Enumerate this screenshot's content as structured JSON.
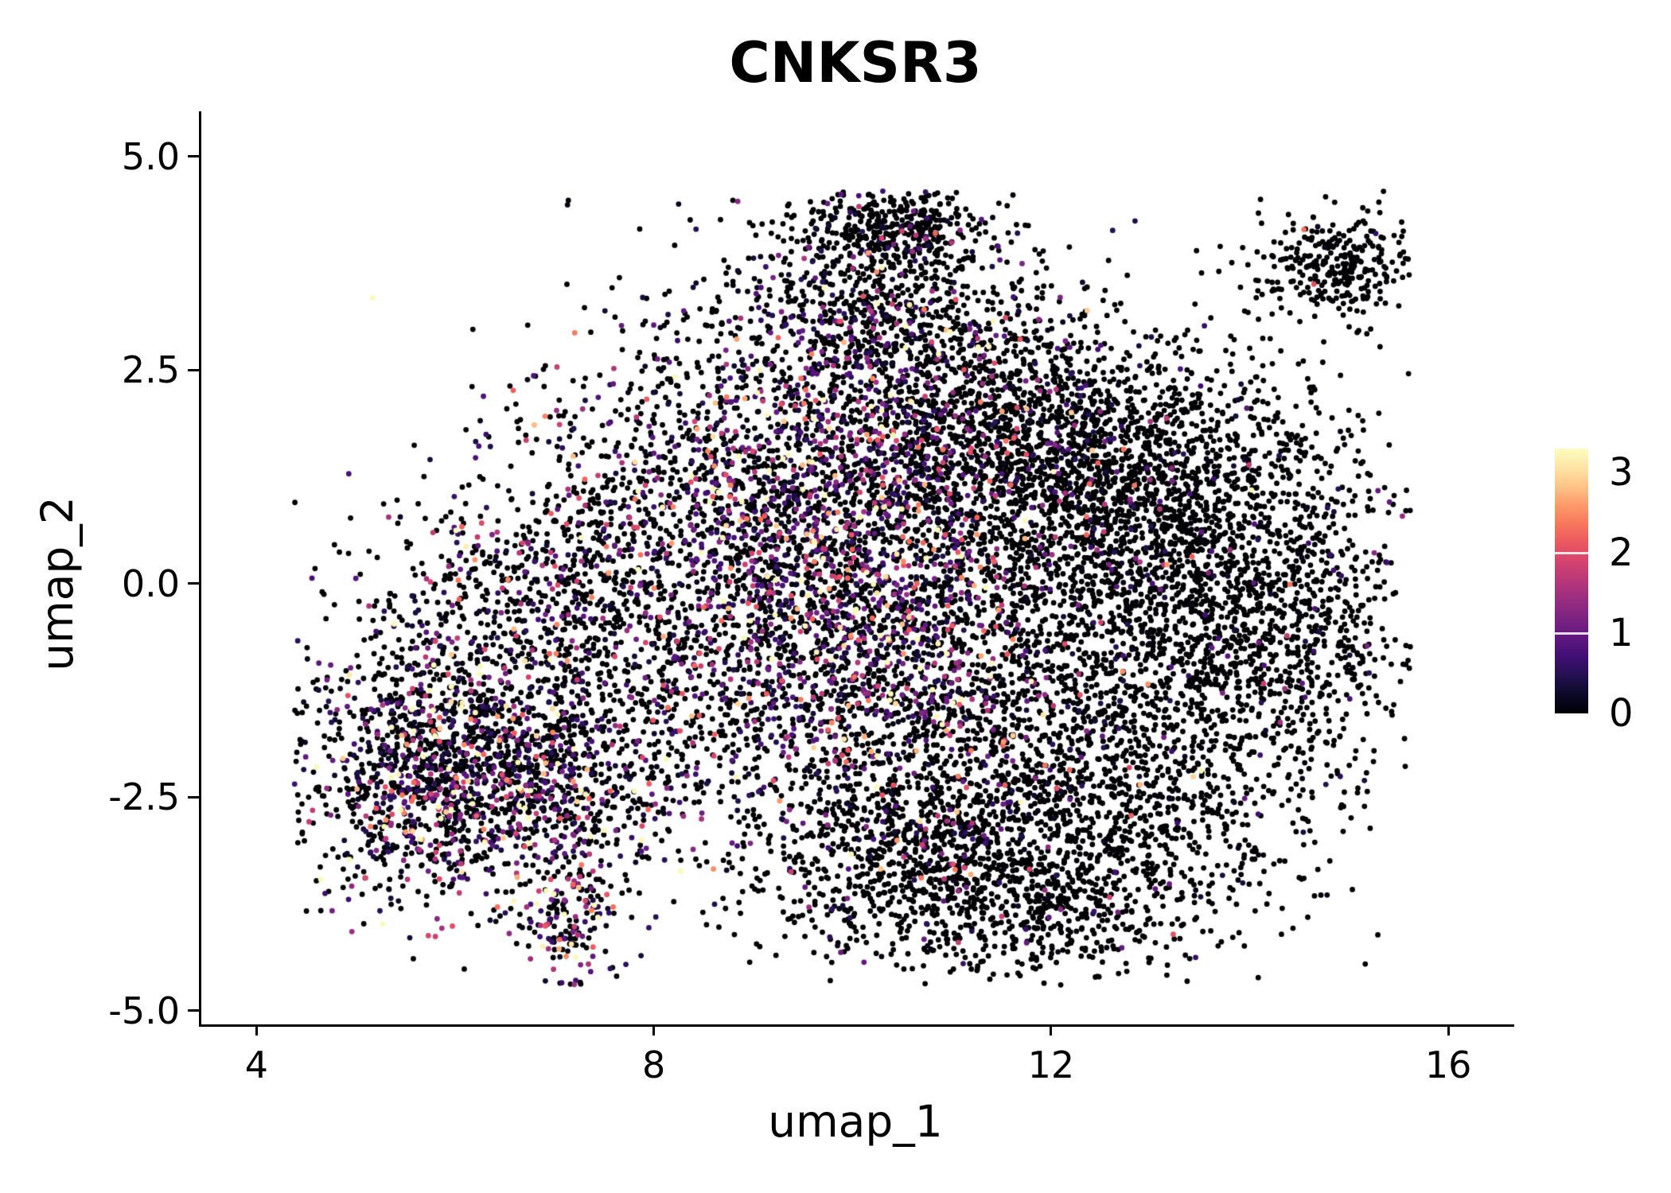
{
  "chart_data": {
    "type": "scatter",
    "title": "CNKSR3",
    "xlabel": "umap_1",
    "ylabel": "umap_2",
    "background_color": "#ffffff",
    "axis_color": "#000000",
    "grid": false,
    "x_domain": [
      3.42,
      16.64
    ],
    "y_domain": [
      -5.16,
      5.53
    ],
    "x_ticks": [
      {
        "value": 4,
        "label": "4"
      },
      {
        "value": 8,
        "label": "8"
      },
      {
        "value": 12,
        "label": "12"
      },
      {
        "value": 16,
        "label": "16"
      }
    ],
    "y_ticks": [
      {
        "value": 5.0,
        "label": "5.0"
      },
      {
        "value": 2.5,
        "label": "2.5"
      },
      {
        "value": 0.0,
        "label": "0.0"
      },
      {
        "value": -2.5,
        "label": "-2.5"
      },
      {
        "value": -5.0,
        "label": "-5.0"
      }
    ],
    "legend": {
      "position": "right",
      "range": [
        0,
        3.3
      ],
      "ticks": [
        {
          "value": 0,
          "label": "0"
        },
        {
          "value": 1,
          "label": "1"
        },
        {
          "value": 2,
          "label": "2"
        },
        {
          "value": 3,
          "label": "3"
        }
      ],
      "tick_marks": [
        1,
        2
      ]
    },
    "colormap": {
      "name": "magma",
      "stops": [
        "#000004",
        "#0c0927",
        "#231151",
        "#410f75",
        "#5f187f",
        "#7b2382",
        "#982d80",
        "#b73779",
        "#d3436e",
        "#eb5760",
        "#f8765c",
        "#fd9a6a",
        "#fec488",
        "#fde4a5",
        "#fcfdbf"
      ]
    },
    "points": {
      "seed": 42,
      "radius": 3.4,
      "clip": {
        "x": [
          4.35,
          15.6
        ],
        "y": [
          -4.7,
          4.6
        ]
      },
      "clusters": [
        {
          "name": "left-lobe-core",
          "cx": 6.15,
          "cy": -2.25,
          "sx": 0.85,
          "sy": 0.72,
          "n": 1400,
          "p_expr": 0.45,
          "expr_mean": 1.0
        },
        {
          "name": "left-lobe-halo",
          "cx": 6.4,
          "cy": -1.7,
          "sx": 1.35,
          "sy": 1.05,
          "n": 900,
          "p_expr": 0.32,
          "expr_mean": 0.9
        },
        {
          "name": "left-top-arm",
          "cx": 7.1,
          "cy": 0.15,
          "sx": 0.95,
          "sy": 0.7,
          "n": 520,
          "p_expr": 0.3,
          "expr_mean": 0.9
        },
        {
          "name": "left-bridge",
          "cx": 8.35,
          "cy": -0.9,
          "sx": 0.95,
          "sy": 0.95,
          "n": 480,
          "p_expr": 0.25,
          "expr_mean": 0.85
        },
        {
          "name": "south-peninsula",
          "cx": 7.15,
          "cy": -3.85,
          "sx": 0.24,
          "sy": 0.5,
          "n": 190,
          "p_expr": 0.5,
          "expr_mean": 1.1
        },
        {
          "name": "central-band",
          "cx": 10.0,
          "cy": 0.35,
          "sx": 0.95,
          "sy": 1.15,
          "n": 1500,
          "p_expr": 0.55,
          "expr_mean": 1.2
        },
        {
          "name": "central-upper-left",
          "cx": 9.2,
          "cy": 1.0,
          "sx": 0.85,
          "sy": 0.95,
          "n": 620,
          "p_expr": 0.42,
          "expr_mean": 1.0
        },
        {
          "name": "central-lower",
          "cx": 10.25,
          "cy": -1.3,
          "sx": 0.95,
          "sy": 0.8,
          "n": 720,
          "p_expr": 0.4,
          "expr_mean": 1.05
        },
        {
          "name": "top-mass",
          "cx": 10.3,
          "cy": 3.2,
          "sx": 0.78,
          "sy": 0.68,
          "n": 720,
          "p_expr": 0.25,
          "expr_mean": 0.9
        },
        {
          "name": "top-tip",
          "cx": 10.4,
          "cy": 4.15,
          "sx": 0.5,
          "sy": 0.26,
          "n": 330,
          "p_expr": 0.12,
          "expr_mean": 0.7
        },
        {
          "name": "upper-mid-right",
          "cx": 11.3,
          "cy": 2.1,
          "sx": 0.85,
          "sy": 0.7,
          "n": 520,
          "p_expr": 0.2,
          "expr_mean": 0.8
        },
        {
          "name": "right-core",
          "cx": 12.9,
          "cy": 0.2,
          "sx": 1.15,
          "sy": 1.25,
          "n": 2300,
          "p_expr": 0.06,
          "expr_mean": 0.7
        },
        {
          "name": "right-upper",
          "cx": 12.4,
          "cy": 1.55,
          "sx": 0.95,
          "sy": 0.62,
          "n": 750,
          "p_expr": 0.08,
          "expr_mean": 0.7
        },
        {
          "name": "right-east",
          "cx": 14.2,
          "cy": -0.5,
          "sx": 0.72,
          "sy": 1.05,
          "n": 620,
          "p_expr": 0.05,
          "expr_mean": 0.6
        },
        {
          "name": "right-lower-lobe",
          "cx": 12.2,
          "cy": -2.6,
          "sx": 1.15,
          "sy": 0.9,
          "n": 1350,
          "p_expr": 0.08,
          "expr_mean": 0.7
        },
        {
          "name": "bottom-middle",
          "cx": 10.6,
          "cy": -3.3,
          "sx": 0.95,
          "sy": 0.62,
          "n": 820,
          "p_expr": 0.12,
          "expr_mean": 0.8
        },
        {
          "name": "bottom-right-tail",
          "cx": 12.1,
          "cy": -3.9,
          "sx": 0.75,
          "sy": 0.38,
          "n": 260,
          "p_expr": 0.06,
          "expr_mean": 0.6
        },
        {
          "name": "satellite-topright",
          "cx": 14.85,
          "cy": 3.72,
          "sx": 0.4,
          "sy": 0.3,
          "n": 310,
          "p_expr": 0.03,
          "expr_mean": 0.5
        },
        {
          "name": "mid-gap-sparse",
          "cx": 11.1,
          "cy": 1.0,
          "sx": 1.25,
          "sy": 1.2,
          "n": 360,
          "p_expr": 0.28,
          "expr_mean": 1.0
        },
        {
          "name": "left-sparse-top",
          "cx": 7.9,
          "cy": 1.7,
          "sx": 1.05,
          "sy": 0.75,
          "n": 210,
          "p_expr": 0.3,
          "expr_mean": 0.85
        },
        {
          "name": "top-left-scatter",
          "cx": 9.4,
          "cy": 2.6,
          "sx": 1.3,
          "sy": 0.85,
          "n": 260,
          "p_expr": 0.3,
          "expr_mean": 0.9
        }
      ]
    }
  }
}
